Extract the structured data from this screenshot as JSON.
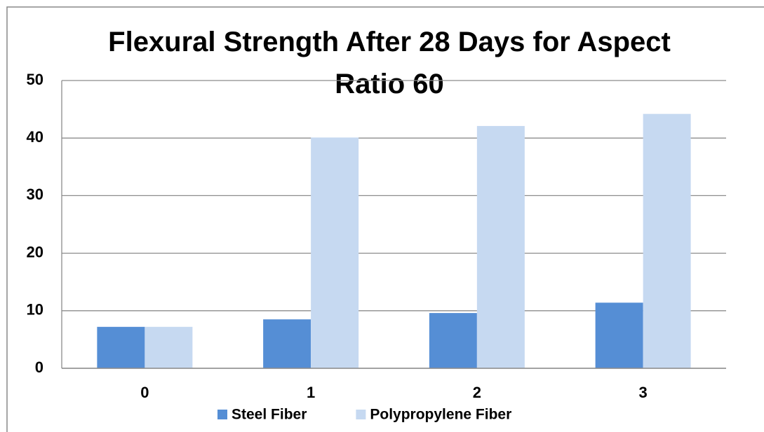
{
  "chart_data": {
    "type": "bar",
    "title": "Flexural Strength After 28 Days for Aspect Ratio 60",
    "categories": [
      "0",
      "1",
      "2",
      "3"
    ],
    "series": [
      {
        "name": "Steel Fiber",
        "color": "#558ed5",
        "values": [
          7.2,
          8.5,
          9.6,
          11.4
        ]
      },
      {
        "name": "Polypropylene Fiber",
        "color": "#c6d9f1",
        "values": [
          7.2,
          40.1,
          42.1,
          44.2
        ]
      }
    ],
    "ylim": [
      0,
      50
    ],
    "yticks": [
      0,
      10,
      20,
      30,
      40,
      50
    ],
    "grid": true,
    "legend": "bottom"
  }
}
